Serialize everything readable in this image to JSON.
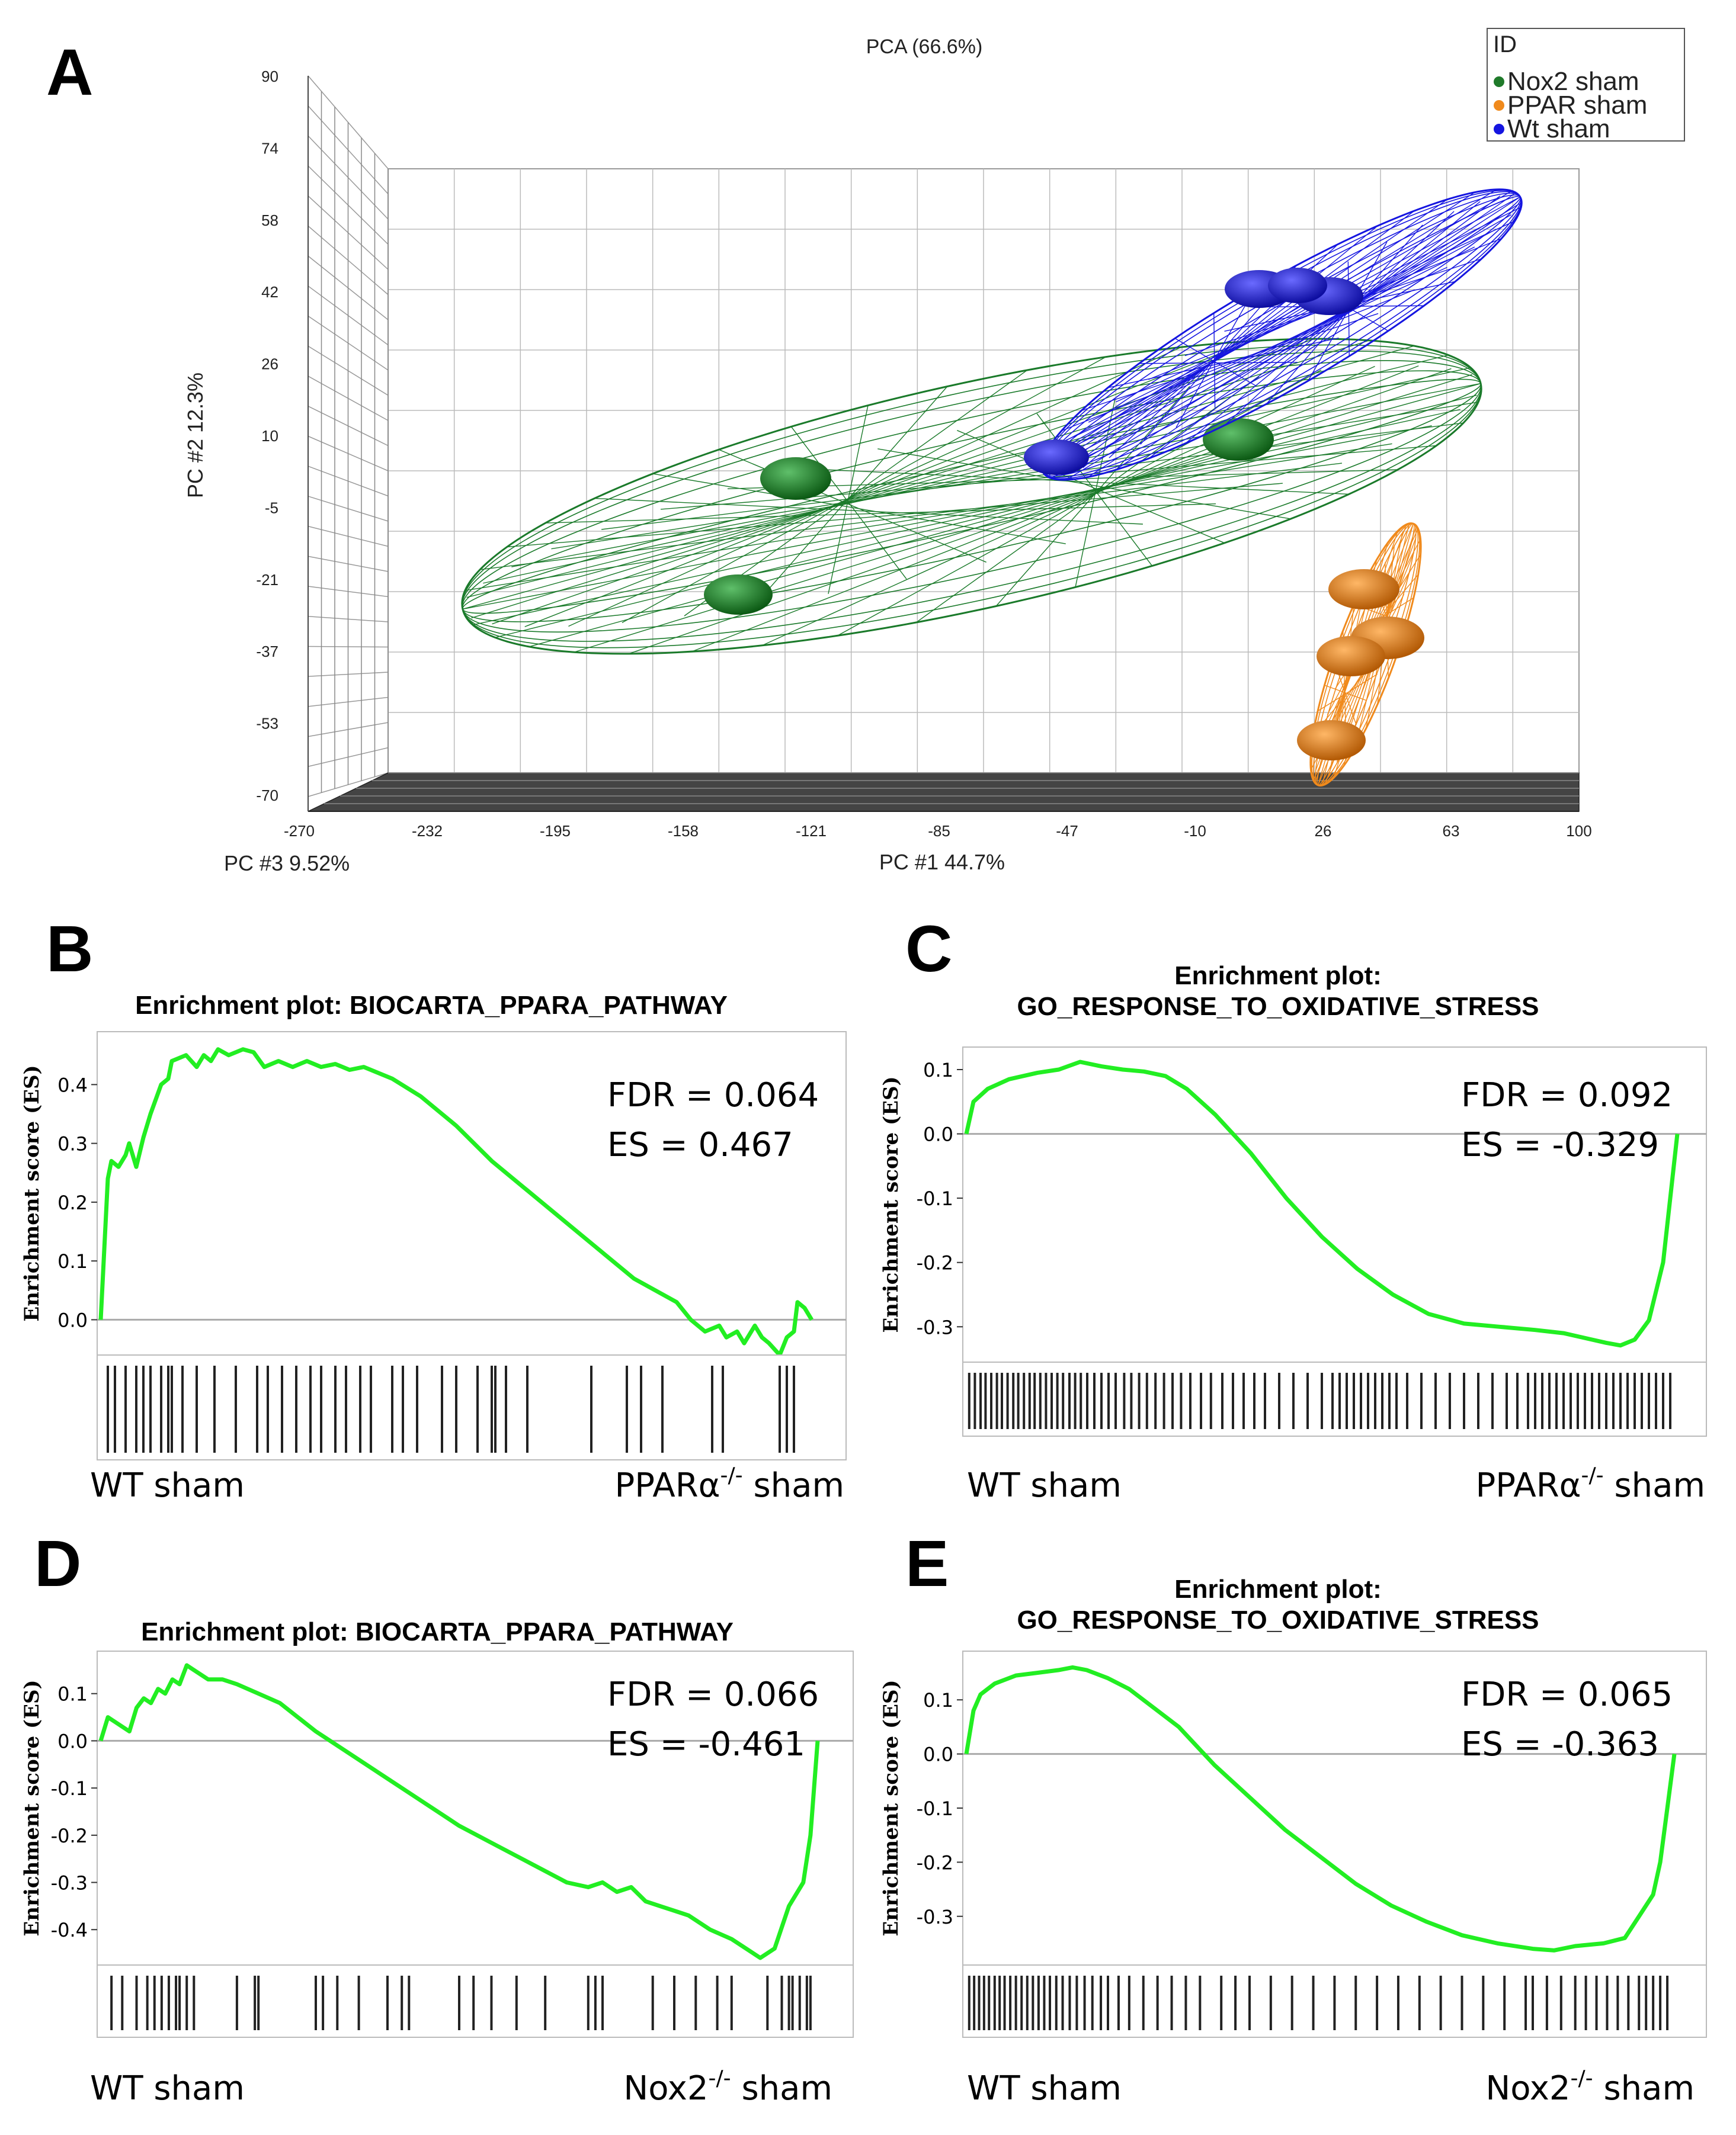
{
  "panelA": {
    "letter": "A",
    "chart_data": {
      "type": "scatter",
      "title": "PCA (66.6%)",
      "xlabel": "PC #1 44.7%",
      "ylabel": "PC #2 12.3%",
      "zlabel": "PC #3 9.52%",
      "y_ticks": [
        "90",
        "74",
        "58",
        "42",
        "26",
        "10",
        "-5",
        "-21",
        "-37",
        "-53",
        "-70"
      ],
      "x_ticks": [
        "-270",
        "-232",
        "-195",
        "-158",
        "-121",
        "-85",
        "-47",
        "-10",
        "26",
        "63",
        "100"
      ],
      "legend": {
        "title": "ID",
        "position": "top-right"
      },
      "series": [
        {
          "name": "Nox2 sham",
          "color": "#1f7a2a"
        },
        {
          "name": "PPAR sham",
          "color": "#f08a1c"
        },
        {
          "name": "Wt sham",
          "color": "#1515e0"
        }
      ]
    }
  },
  "panelB": {
    "letter": "B",
    "chart_data": {
      "type": "line",
      "title": [
        "Enrichment plot: BIOCARTA_PPARA_PATHWAY"
      ],
      "ylabel": "Enrichment score (ES)",
      "yticks": [
        0.4,
        0.3,
        0.2,
        0.1,
        0.0
      ],
      "yrange": [
        -0.06,
        0.49
      ],
      "color": "#22ee22",
      "fdr": "FDR = 0.064",
      "es": "ES = 0.467",
      "left_label": "WT  sham",
      "right_label": "PPARα",
      "right_sup": "-/-",
      "right_suffix": " sham",
      "points": [
        [
          0.0,
          0.0
        ],
        [
          0.005,
          0.12
        ],
        [
          0.01,
          0.24
        ],
        [
          0.015,
          0.27
        ],
        [
          0.025,
          0.26
        ],
        [
          0.035,
          0.28
        ],
        [
          0.04,
          0.3
        ],
        [
          0.05,
          0.26
        ],
        [
          0.06,
          0.31
        ],
        [
          0.07,
          0.35
        ],
        [
          0.085,
          0.4
        ],
        [
          0.095,
          0.41
        ],
        [
          0.1,
          0.44
        ],
        [
          0.12,
          0.45
        ],
        [
          0.135,
          0.43
        ],
        [
          0.145,
          0.45
        ],
        [
          0.155,
          0.44
        ],
        [
          0.165,
          0.46
        ],
        [
          0.18,
          0.45
        ],
        [
          0.2,
          0.46
        ],
        [
          0.215,
          0.455
        ],
        [
          0.23,
          0.43
        ],
        [
          0.25,
          0.44
        ],
        [
          0.27,
          0.43
        ],
        [
          0.29,
          0.44
        ],
        [
          0.31,
          0.43
        ],
        [
          0.33,
          0.435
        ],
        [
          0.35,
          0.425
        ],
        [
          0.37,
          0.43
        ],
        [
          0.39,
          0.42
        ],
        [
          0.41,
          0.41
        ],
        [
          0.45,
          0.38
        ],
        [
          0.5,
          0.33
        ],
        [
          0.55,
          0.27
        ],
        [
          0.6,
          0.22
        ],
        [
          0.65,
          0.17
        ],
        [
          0.7,
          0.12
        ],
        [
          0.72,
          0.1
        ],
        [
          0.75,
          0.07
        ],
        [
          0.78,
          0.05
        ],
        [
          0.81,
          0.03
        ],
        [
          0.83,
          0.0
        ],
        [
          0.85,
          -0.02
        ],
        [
          0.87,
          -0.01
        ],
        [
          0.88,
          -0.03
        ],
        [
          0.895,
          -0.02
        ],
        [
          0.905,
          -0.04
        ],
        [
          0.91,
          -0.03
        ],
        [
          0.92,
          -0.01
        ],
        [
          0.93,
          -0.03
        ],
        [
          0.94,
          -0.04
        ],
        [
          0.955,
          -0.06
        ],
        [
          0.965,
          -0.03
        ],
        [
          0.975,
          -0.02
        ],
        [
          0.98,
          0.03
        ],
        [
          0.99,
          0.02
        ],
        [
          1.0,
          0.0
        ]
      ],
      "hits": [
        0.01,
        0.02,
        0.035,
        0.05,
        0.06,
        0.07,
        0.085,
        0.095,
        0.1,
        0.115,
        0.135,
        0.16,
        0.19,
        0.22,
        0.235,
        0.255,
        0.275,
        0.295,
        0.31,
        0.33,
        0.345,
        0.365,
        0.38,
        0.41,
        0.425,
        0.445,
        0.48,
        0.5,
        0.53,
        0.55,
        0.555,
        0.57,
        0.6,
        0.69,
        0.74,
        0.76,
        0.79,
        0.86,
        0.875,
        0.955,
        0.965,
        0.975
      ]
    }
  },
  "panelC": {
    "letter": "C",
    "chart_data": {
      "type": "line",
      "title": [
        "Enrichment plot:",
        "GO_RESPONSE_TO_OXIDATIVE_STRESS"
      ],
      "ylabel": "Enrichment score (ES)",
      "yticks": [
        0.1,
        0.0,
        -0.1,
        -0.2,
        -0.3
      ],
      "yrange": [
        -0.355,
        0.135
      ],
      "color": "#22ee22",
      "fdr": "FDR = 0.092",
      "es": "ES = -0.329",
      "left_label": "WT  sham",
      "right_label": "PPARα",
      "right_sup": "-/-",
      "right_suffix": " sham",
      "points": [
        [
          0.0,
          0.0
        ],
        [
          0.01,
          0.05
        ],
        [
          0.03,
          0.07
        ],
        [
          0.06,
          0.085
        ],
        [
          0.1,
          0.095
        ],
        [
          0.13,
          0.1
        ],
        [
          0.16,
          0.112
        ],
        [
          0.19,
          0.105
        ],
        [
          0.22,
          0.1
        ],
        [
          0.25,
          0.097
        ],
        [
          0.28,
          0.09
        ],
        [
          0.31,
          0.07
        ],
        [
          0.35,
          0.03
        ],
        [
          0.4,
          -0.03
        ],
        [
          0.45,
          -0.1
        ],
        [
          0.5,
          -0.16
        ],
        [
          0.55,
          -0.21
        ],
        [
          0.6,
          -0.25
        ],
        [
          0.65,
          -0.28
        ],
        [
          0.7,
          -0.295
        ],
        [
          0.75,
          -0.3
        ],
        [
          0.8,
          -0.305
        ],
        [
          0.84,
          -0.31
        ],
        [
          0.88,
          -0.32
        ],
        [
          0.9,
          -0.325
        ],
        [
          0.92,
          -0.329
        ],
        [
          0.94,
          -0.32
        ],
        [
          0.96,
          -0.29
        ],
        [
          0.98,
          -0.2
        ],
        [
          0.99,
          -0.1
        ],
        [
          1.0,
          0.0
        ]
      ],
      "hits": [
        0.004,
        0.012,
        0.02,
        0.027,
        0.035,
        0.043,
        0.05,
        0.058,
        0.066,
        0.073,
        0.081,
        0.089,
        0.096,
        0.104,
        0.112,
        0.12,
        0.128,
        0.136,
        0.145,
        0.153,
        0.161,
        0.17,
        0.18,
        0.19,
        0.2,
        0.21,
        0.222,
        0.232,
        0.243,
        0.254,
        0.266,
        0.278,
        0.29,
        0.302,
        0.315,
        0.33,
        0.344,
        0.36,
        0.375,
        0.39,
        0.405,
        0.42,
        0.44,
        0.46,
        0.48,
        0.5,
        0.515,
        0.525,
        0.535,
        0.545,
        0.555,
        0.565,
        0.575,
        0.585,
        0.595,
        0.605,
        0.62,
        0.64,
        0.66,
        0.68,
        0.7,
        0.72,
        0.74,
        0.76,
        0.775,
        0.79,
        0.8,
        0.81,
        0.82,
        0.83,
        0.84,
        0.85,
        0.86,
        0.87,
        0.88,
        0.89,
        0.9,
        0.91,
        0.92,
        0.93,
        0.94,
        0.95,
        0.96,
        0.97,
        0.98,
        0.99
      ]
    }
  },
  "panelD": {
    "letter": "D",
    "chart_data": {
      "type": "line",
      "title": [
        "Enrichment plot: BIOCARTA_PPARA_PATHWAY"
      ],
      "ylabel": "Enrichment score (ES)",
      "yticks": [
        0.1,
        0.0,
        -0.1,
        -0.2,
        -0.3,
        -0.4
      ],
      "yrange": [
        -0.475,
        0.19
      ],
      "color": "#22ee22",
      "fdr": "FDR = 0.066",
      "es": "ES = -0.461",
      "left_label": "WT  sham",
      "right_label": "Nox2",
      "right_sup": "-/-",
      "right_suffix": " sham",
      "points": [
        [
          0.0,
          0.0
        ],
        [
          0.01,
          0.05
        ],
        [
          0.02,
          0.04
        ],
        [
          0.04,
          0.02
        ],
        [
          0.05,
          0.07
        ],
        [
          0.06,
          0.09
        ],
        [
          0.07,
          0.08
        ],
        [
          0.08,
          0.11
        ],
        [
          0.09,
          0.1
        ],
        [
          0.1,
          0.13
        ],
        [
          0.11,
          0.12
        ],
        [
          0.12,
          0.16
        ],
        [
          0.13,
          0.15
        ],
        [
          0.15,
          0.13
        ],
        [
          0.17,
          0.13
        ],
        [
          0.19,
          0.12
        ],
        [
          0.22,
          0.1
        ],
        [
          0.25,
          0.08
        ],
        [
          0.3,
          0.02
        ],
        [
          0.35,
          -0.03
        ],
        [
          0.4,
          -0.08
        ],
        [
          0.45,
          -0.13
        ],
        [
          0.5,
          -0.18
        ],
        [
          0.55,
          -0.22
        ],
        [
          0.6,
          -0.26
        ],
        [
          0.65,
          -0.3
        ],
        [
          0.68,
          -0.31
        ],
        [
          0.7,
          -0.3
        ],
        [
          0.72,
          -0.32
        ],
        [
          0.74,
          -0.31
        ],
        [
          0.76,
          -0.34
        ],
        [
          0.78,
          -0.35
        ],
        [
          0.8,
          -0.36
        ],
        [
          0.82,
          -0.37
        ],
        [
          0.85,
          -0.4
        ],
        [
          0.88,
          -0.42
        ],
        [
          0.9,
          -0.44
        ],
        [
          0.92,
          -0.46
        ],
        [
          0.94,
          -0.44
        ],
        [
          0.96,
          -0.35
        ],
        [
          0.98,
          -0.3
        ],
        [
          0.99,
          -0.2
        ],
        [
          1.0,
          0.0
        ]
      ],
      "hits": [
        0.015,
        0.03,
        0.05,
        0.065,
        0.075,
        0.085,
        0.095,
        0.105,
        0.11,
        0.12,
        0.13,
        0.19,
        0.215,
        0.22,
        0.3,
        0.31,
        0.33,
        0.36,
        0.4,
        0.42,
        0.43,
        0.5,
        0.52,
        0.545,
        0.58,
        0.62,
        0.68,
        0.69,
        0.7,
        0.77,
        0.8,
        0.83,
        0.86,
        0.88,
        0.93,
        0.95,
        0.96,
        0.965,
        0.975,
        0.985,
        0.99
      ]
    }
  },
  "panelE": {
    "letter": "E",
    "chart_data": {
      "type": "line",
      "title": [
        "Enrichment plot:",
        "GO_RESPONSE_TO_OXIDATIVE_STRESS"
      ],
      "ylabel": "Enrichment score (ES)",
      "yticks": [
        0.1,
        0.0,
        -0.1,
        -0.2,
        -0.3
      ],
      "yrange": [
        -0.39,
        0.19
      ],
      "color": "#22ee22",
      "fdr": "FDR = 0.065",
      "es": "ES = -0.363",
      "left_label": "WT  sham",
      "right_label": "Nox2",
      "right_sup": "-/-",
      "right_suffix": " sham",
      "points": [
        [
          0.0,
          0.0
        ],
        [
          0.01,
          0.08
        ],
        [
          0.02,
          0.11
        ],
        [
          0.04,
          0.13
        ],
        [
          0.07,
          0.145
        ],
        [
          0.1,
          0.15
        ],
        [
          0.13,
          0.155
        ],
        [
          0.15,
          0.16
        ],
        [
          0.17,
          0.155
        ],
        [
          0.2,
          0.14
        ],
        [
          0.23,
          0.12
        ],
        [
          0.26,
          0.09
        ],
        [
          0.3,
          0.05
        ],
        [
          0.35,
          -0.02
        ],
        [
          0.4,
          -0.08
        ],
        [
          0.45,
          -0.14
        ],
        [
          0.5,
          -0.19
        ],
        [
          0.55,
          -0.24
        ],
        [
          0.6,
          -0.28
        ],
        [
          0.65,
          -0.31
        ],
        [
          0.7,
          -0.335
        ],
        [
          0.75,
          -0.35
        ],
        [
          0.8,
          -0.36
        ],
        [
          0.83,
          -0.363
        ],
        [
          0.86,
          -0.355
        ],
        [
          0.9,
          -0.35
        ],
        [
          0.93,
          -0.34
        ],
        [
          0.95,
          -0.3
        ],
        [
          0.97,
          -0.26
        ],
        [
          0.98,
          -0.2
        ],
        [
          0.99,
          -0.1
        ],
        [
          1.0,
          0.0
        ]
      ],
      "hits": [
        0.004,
        0.011,
        0.018,
        0.025,
        0.032,
        0.04,
        0.047,
        0.054,
        0.062,
        0.07,
        0.078,
        0.086,
        0.094,
        0.102,
        0.11,
        0.118,
        0.127,
        0.136,
        0.146,
        0.156,
        0.167,
        0.178,
        0.19,
        0.2,
        0.215,
        0.23,
        0.25,
        0.27,
        0.29,
        0.31,
        0.33,
        0.36,
        0.38,
        0.4,
        0.43,
        0.46,
        0.49,
        0.52,
        0.55,
        0.58,
        0.61,
        0.64,
        0.67,
        0.7,
        0.73,
        0.76,
        0.79,
        0.8,
        0.82,
        0.84,
        0.86,
        0.875,
        0.89,
        0.905,
        0.92,
        0.935,
        0.95,
        0.96,
        0.97,
        0.98,
        0.99
      ]
    }
  }
}
